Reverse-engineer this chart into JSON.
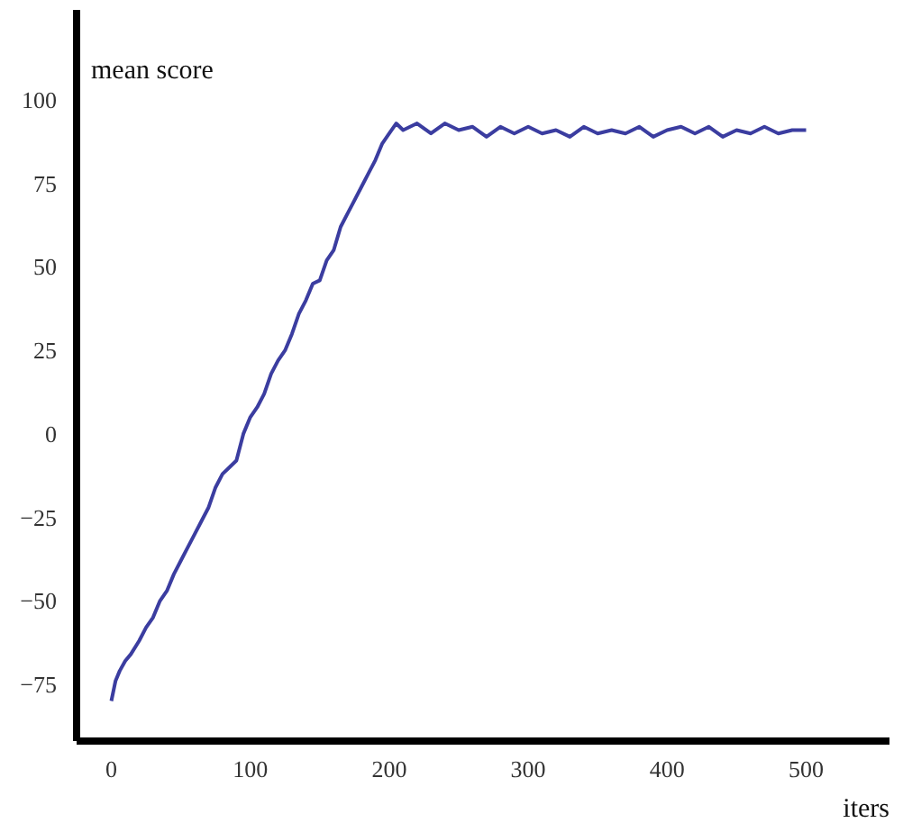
{
  "chart_data": {
    "type": "line",
    "xlabel": "iters",
    "ylabel": "mean score",
    "x": [
      0,
      3,
      6,
      10,
      14,
      20,
      25,
      30,
      35,
      40,
      45,
      50,
      55,
      60,
      65,
      70,
      75,
      80,
      85,
      90,
      95,
      100,
      105,
      110,
      115,
      120,
      125,
      130,
      135,
      140,
      145,
      150,
      155,
      160,
      165,
      170,
      175,
      180,
      185,
      190,
      195,
      200,
      205,
      210,
      220,
      230,
      240,
      250,
      260,
      270,
      280,
      290,
      300,
      310,
      320,
      330,
      340,
      350,
      360,
      370,
      380,
      390,
      400,
      410,
      420,
      430,
      440,
      450,
      460,
      470,
      480,
      490,
      500
    ],
    "series": [
      {
        "color": "#3b3da0",
        "values": [
          -80,
          -74,
          -71,
          -68,
          -66,
          -62,
          -58,
          -55,
          -50,
          -47,
          -42,
          -38,
          -34,
          -30,
          -26,
          -22,
          -16,
          -12,
          -10,
          -8,
          0,
          5,
          8,
          12,
          18,
          22,
          25,
          30,
          36,
          40,
          45,
          46,
          52,
          55,
          62,
          66,
          70,
          74,
          78,
          82,
          87,
          90,
          93,
          91,
          93,
          90,
          93,
          91,
          92,
          89,
          92,
          90,
          92,
          90,
          91,
          89,
          92,
          90,
          91,
          90,
          92,
          89,
          91,
          92,
          90,
          92,
          89,
          91,
          90,
          92,
          90,
          91,
          91
        ]
      }
    ],
    "xlim": [
      -25,
      560
    ],
    "ylim": [
      -92,
      127
    ],
    "xticks": [
      0,
      100,
      200,
      300,
      400,
      500
    ],
    "yticks": [
      -75,
      -50,
      -25,
      0,
      25,
      50,
      75,
      100
    ],
    "grid": false,
    "line_style": "solid",
    "marker": "none"
  }
}
